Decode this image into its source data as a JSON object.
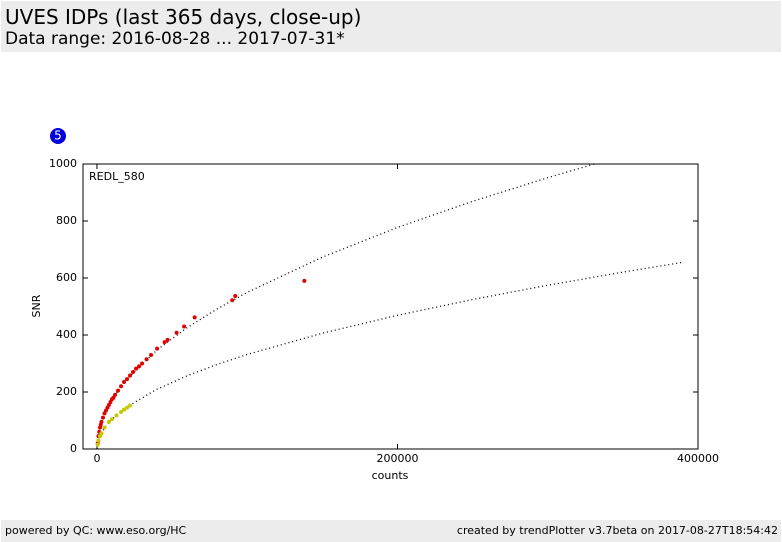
{
  "header": {
    "title": "UVES IDPs (last 365 days, close-up)",
    "subtitle": "Data range: 2016-08-28 ... 2017-07-31*"
  },
  "badge": "5",
  "chart_data": {
    "type": "scatter",
    "annotation": "REDL_580",
    "xlabel": "counts",
    "ylabel": "SNR",
    "xlim": [
      -9300,
      400000
    ],
    "ylim": [
      0,
      1000
    ],
    "xticks": [
      0,
      200000,
      400000
    ],
    "yticks": [
      0,
      200,
      400,
      600,
      800,
      1000
    ],
    "series": [
      {
        "mode": "dotted-line",
        "color": "#000000",
        "x": [
          0,
          2000,
          5000,
          10000,
          20000,
          40000,
          60000,
          80000,
          100000,
          150000,
          200000,
          250000,
          300000,
          331000
        ],
        "values": [
          0,
          77.7,
          122.9,
          173.8,
          245.8,
          347.6,
          425.7,
          491.6,
          549.6,
          673.1,
          777.3,
          869,
          951.9,
          1000
        ]
      },
      {
        "mode": "dotted-line",
        "color": "#000000",
        "x": [
          0,
          2000,
          5000,
          10000,
          20000,
          40000,
          60000,
          80000,
          100000,
          150000,
          200000,
          250000,
          300000,
          350000,
          390000
        ],
        "values": [
          0,
          46.9,
          74.2,
          104.9,
          148.3,
          209.8,
          256.9,
          296.7,
          331.7,
          406.3,
          469.1,
          524.5,
          574.6,
          620.6,
          655.1
        ]
      },
      {
        "mode": "points",
        "color": "#e00000",
        "x": [
          500,
          1000,
          1500,
          2000,
          2500,
          3000,
          4000,
          5000,
          6000,
          7000,
          8000,
          9000,
          10000,
          11000,
          12000,
          14000,
          16000,
          18000,
          20000,
          22000,
          24000,
          26000,
          28000,
          30000,
          33000,
          36000,
          40000,
          45000,
          47000,
          53000,
          58000,
          65000,
          90000,
          92000,
          138000
        ],
        "values": [
          20,
          45,
          60,
          75,
          85,
          95,
          110,
          125,
          135,
          145,
          155,
          165,
          175,
          180,
          190,
          205,
          220,
          235,
          245,
          258,
          270,
          282,
          290,
          300,
          315,
          330,
          352,
          375,
          383,
          408,
          430,
          462,
          522,
          537,
          590
        ]
      },
      {
        "mode": "points",
        "color": "#c8c800",
        "x": [
          500,
          1000,
          2000,
          3000,
          5000,
          8000,
          10000,
          13000,
          16000,
          18000,
          20000,
          22000
        ],
        "values": [
          15,
          30,
          45,
          55,
          75,
          95,
          105,
          118,
          130,
          138,
          145,
          152
        ]
      }
    ]
  },
  "footer": {
    "left": "powered by QC: www.eso.org/HC",
    "right": "created by trendPlotter v3.7beta on 2017-08-27T18:54:42"
  }
}
